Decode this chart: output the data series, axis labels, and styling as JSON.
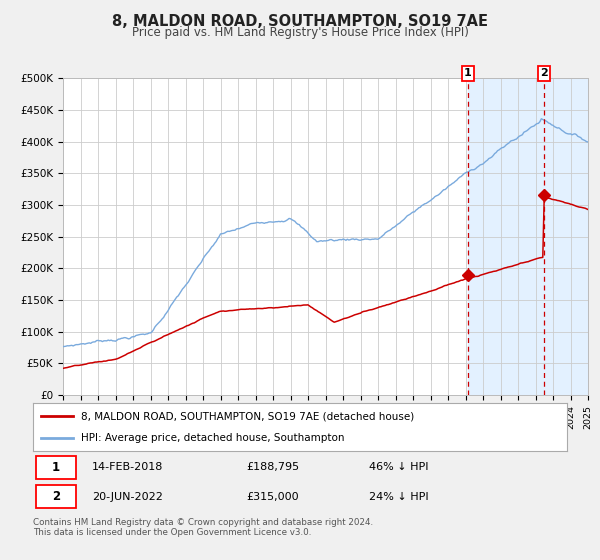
{
  "title": "8, MALDON ROAD, SOUTHAMPTON, SO19 7AE",
  "subtitle": "Price paid vs. HM Land Registry's House Price Index (HPI)",
  "ylim": [
    0,
    500000
  ],
  "xlim_start": 1995,
  "xlim_end": 2025,
  "yticks": [
    0,
    50000,
    100000,
    150000,
    200000,
    250000,
    300000,
    350000,
    400000,
    450000,
    500000
  ],
  "ytick_labels": [
    "£0",
    "£50K",
    "£100K",
    "£150K",
    "£200K",
    "£250K",
    "£300K",
    "£350K",
    "£400K",
    "£450K",
    "£500K"
  ],
  "bg_color": "#f0f0f0",
  "plot_bg_color": "#ffffff",
  "grid_color": "#cccccc",
  "red_line_color": "#cc0000",
  "blue_line_color": "#7aaadd",
  "shade_color": "#ddeeff",
  "marker_color": "#cc0000",
  "vline_color": "#cc0000",
  "event1_x": 2018.12,
  "event1_y": 188795,
  "event2_x": 2022.47,
  "event2_y": 315000,
  "event1_date": "14-FEB-2018",
  "event1_price": "£188,795",
  "event1_hpi": "46% ↓ HPI",
  "event2_date": "20-JUN-2022",
  "event2_price": "£315,000",
  "event2_hpi": "24% ↓ HPI",
  "legend_line1": "8, MALDON ROAD, SOUTHAMPTON, SO19 7AE (detached house)",
  "legend_line2": "HPI: Average price, detached house, Southampton",
  "footer": "Contains HM Land Registry data © Crown copyright and database right 2024.\nThis data is licensed under the Open Government Licence v3.0."
}
